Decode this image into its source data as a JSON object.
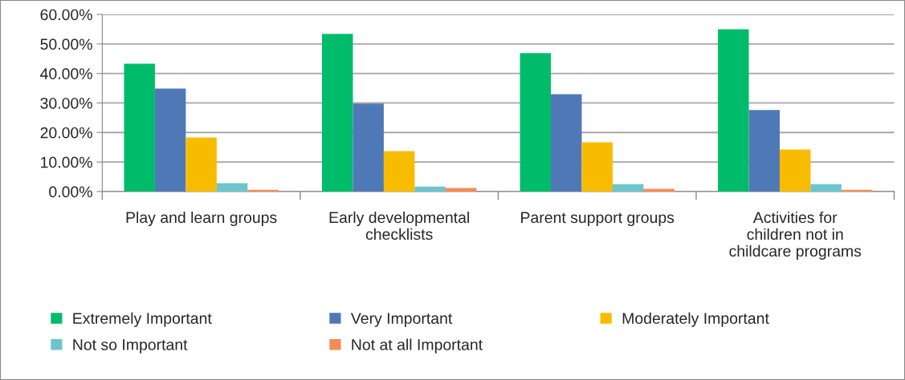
{
  "chart_data": {
    "type": "bar",
    "categories": [
      "Play and learn groups",
      "Early developmental checklists",
      "Parent support groups",
      "Activities for children not in childcare programs"
    ],
    "series": [
      {
        "name": "Extremely Important",
        "color": "#00bc6a",
        "values": [
          43.3,
          53.4,
          46.9,
          55.0
        ]
      },
      {
        "name": "Very Important",
        "color": "#4f79b6",
        "values": [
          34.9,
          29.8,
          33.0,
          27.6
        ]
      },
      {
        "name": "Moderately Important",
        "color": "#f7bc00",
        "values": [
          18.3,
          13.7,
          16.7,
          14.2
        ]
      },
      {
        "name": "Not so Important",
        "color": "#6cc5cc",
        "values": [
          2.8,
          1.7,
          2.5,
          2.5
        ]
      },
      {
        "name": "Not at all Important",
        "color": "#f98b55",
        "values": [
          0.6,
          1.2,
          0.9,
          0.6
        ]
      }
    ],
    "ylim": [
      0,
      60
    ],
    "yticks": [
      {
        "value": 0,
        "label": "0.00%"
      },
      {
        "value": 10,
        "label": "10.00%"
      },
      {
        "value": 20,
        "label": "20.00%"
      },
      {
        "value": 30,
        "label": "30.00%"
      },
      {
        "value": 40,
        "label": "40.00%"
      },
      {
        "value": 50,
        "label": "50.00%"
      },
      {
        "value": 60,
        "label": "60.00%"
      }
    ],
    "grid": "y",
    "legend": "bottom"
  }
}
